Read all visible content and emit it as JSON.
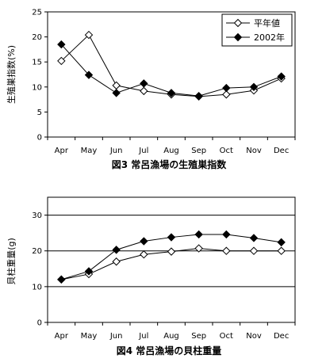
{
  "chart_data": [
    {
      "type": "line",
      "title": "図3  常呂漁場の生殖巣指数",
      "ylabel": "生殖巣指数(%)",
      "xlabel": "",
      "categories": [
        "Apr",
        "May",
        "Jun",
        "Jul",
        "Aug",
        "Sep",
        "Oct",
        "Nov",
        "Dec"
      ],
      "ylim": [
        0,
        25
      ],
      "yticks": [
        0,
        5,
        10,
        15,
        20,
        25
      ],
      "grid": false,
      "legend": "top-right",
      "series": [
        {
          "name": "平年値",
          "marker": "open-diamond",
          "values": [
            15.2,
            20.4,
            10.3,
            9.2,
            8.5,
            8.1,
            8.5,
            9.3,
            11.7
          ]
        },
        {
          "name": "2002年",
          "marker": "filled-diamond",
          "values": [
            18.5,
            12.4,
            8.8,
            10.7,
            8.8,
            8.2,
            9.8,
            10.0,
            12.1
          ]
        }
      ]
    },
    {
      "type": "line",
      "title": "図4  常呂漁場の貝柱重量",
      "ylabel": "貝柱重量(g)",
      "xlabel": "",
      "categories": [
        "Apr",
        "May",
        "Jun",
        "Jul",
        "Aug",
        "Sep",
        "Oct",
        "Nov",
        "Dec"
      ],
      "ylim": [
        0,
        35
      ],
      "yticks": [
        0,
        10,
        20,
        30
      ],
      "grid": true,
      "legend": "none",
      "series": [
        {
          "name": "平年値",
          "marker": "open-diamond",
          "values": [
            12.0,
            13.5,
            17.0,
            19.0,
            19.8,
            20.7,
            20.0,
            20.0,
            20.0
          ]
        },
        {
          "name": "2002年",
          "marker": "filled-diamond",
          "values": [
            12.0,
            14.3,
            20.3,
            22.7,
            23.8,
            24.6,
            24.6,
            23.6,
            22.4
          ]
        }
      ]
    }
  ]
}
